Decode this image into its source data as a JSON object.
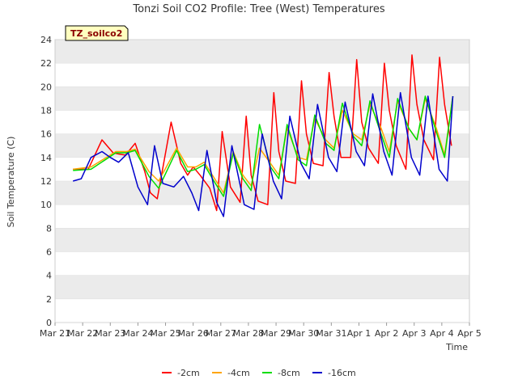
{
  "chart_data": {
    "type": "line",
    "title": "Tonzi Soil CO2 Profile: Tree (West) Temperatures",
    "xlabel": "Time",
    "ylabel": "Soil Temperature (C)",
    "tag": "TZ_soilco2",
    "ylim": [
      0,
      24
    ],
    "yticks": [
      0,
      2,
      4,
      6,
      8,
      10,
      12,
      14,
      16,
      18,
      20,
      22,
      24
    ],
    "xlim": [
      0,
      15
    ],
    "xticks": [
      {
        "v": 0,
        "label": "Mar 21"
      },
      {
        "v": 1,
        "label": "Mar 22"
      },
      {
        "v": 2,
        "label": "Mar 23"
      },
      {
        "v": 3,
        "label": "Mar 24"
      },
      {
        "v": 4,
        "label": "Mar 25"
      },
      {
        "v": 5,
        "label": "Mar 26"
      },
      {
        "v": 6,
        "label": "Mar 27"
      },
      {
        "v": 7,
        "label": "Mar 28"
      },
      {
        "v": 8,
        "label": "Mar 29"
      },
      {
        "v": 9,
        "label": "Mar 30"
      },
      {
        "v": 10,
        "label": "Mar 31"
      },
      {
        "v": 11,
        "label": "Apr 1"
      },
      {
        "v": 12,
        "label": "Apr 2"
      },
      {
        "v": 13,
        "label": "Apr 3"
      },
      {
        "v": 14,
        "label": "Apr 4"
      },
      {
        "v": 15,
        "label": "Apr 5"
      }
    ],
    "grid": "horizontal bands",
    "legend_position": "bottom",
    "series": [
      {
        "name": "-2cm",
        "color": "#ff0000",
        "x": [
          0.65,
          1.2,
          1.7,
          2.1,
          2.3,
          2.55,
          2.9,
          3.25,
          3.45,
          3.7,
          4.2,
          4.55,
          4.8,
          5.0,
          5.25,
          5.6,
          5.85,
          6.05,
          6.35,
          6.7,
          6.92,
          7.1,
          7.35,
          7.7,
          7.92,
          8.1,
          8.35,
          8.7,
          8.92,
          9.1,
          9.35,
          9.7,
          9.92,
          10.1,
          10.35,
          10.7,
          10.92,
          11.1,
          11.35,
          11.7,
          11.92,
          12.1,
          12.35,
          12.7,
          12.92,
          13.1,
          13.35,
          13.7,
          13.92,
          14.1,
          14.35
        ],
        "y": [
          13.0,
          13.0,
          15.5,
          14.4,
          14.3,
          14.2,
          15.2,
          12.8,
          11.0,
          10.5,
          17.0,
          13.5,
          12.5,
          13.2,
          12.5,
          11.4,
          9.5,
          16.2,
          11.5,
          10.2,
          17.5,
          12.5,
          10.3,
          10.0,
          19.5,
          14.5,
          12.0,
          11.8,
          20.5,
          16.0,
          13.5,
          13.3,
          21.2,
          17.5,
          14.0,
          14.0,
          22.3,
          17.0,
          14.8,
          13.5,
          22.0,
          18.0,
          15.0,
          13.0,
          22.7,
          18.5,
          15.5,
          13.8,
          22.5,
          18.5,
          15.0
        ]
      },
      {
        "name": "-4cm",
        "color": "#ffa500",
        "x": [
          0.65,
          1.3,
          2.2,
          2.6,
          2.9,
          3.4,
          3.75,
          4.4,
          4.8,
          5.1,
          5.4,
          5.75,
          6.1,
          6.45,
          6.8,
          7.1,
          7.4,
          7.8,
          8.1,
          8.4,
          8.8,
          9.1,
          9.4,
          9.8,
          10.1,
          10.4,
          10.8,
          11.1,
          11.4,
          11.8,
          12.1,
          12.4,
          12.8,
          13.1,
          13.4,
          13.8,
          14.1,
          14.4
        ],
        "y": [
          13.0,
          13.2,
          14.5,
          14.5,
          14.7,
          12.8,
          12.0,
          14.8,
          13.2,
          13.2,
          13.6,
          12.3,
          11.0,
          14.5,
          12.5,
          11.6,
          14.8,
          13.5,
          12.5,
          16.5,
          14.0,
          13.8,
          17.3,
          15.5,
          14.8,
          18.0,
          16.0,
          15.5,
          18.5,
          16.5,
          14.5,
          18.8,
          16.5,
          15.5,
          19.0,
          16.5,
          14.2,
          19.2
        ]
      },
      {
        "name": "-8cm",
        "color": "#00dd00",
        "x": [
          0.65,
          1.3,
          2.2,
          2.6,
          2.9,
          3.4,
          3.75,
          4.4,
          4.8,
          5.1,
          5.4,
          5.75,
          6.1,
          6.45,
          6.8,
          7.1,
          7.4,
          7.8,
          8.1,
          8.4,
          8.8,
          9.1,
          9.4,
          9.8,
          10.1,
          10.4,
          10.8,
          11.1,
          11.4,
          11.8,
          12.1,
          12.4,
          12.8,
          13.1,
          13.4,
          13.8,
          14.1,
          14.4
        ],
        "y": [
          12.9,
          13.0,
          14.4,
          14.4,
          14.6,
          12.4,
          11.4,
          14.6,
          12.8,
          13.0,
          13.4,
          12.0,
          10.7,
          14.4,
          12.2,
          11.2,
          16.8,
          13.2,
          12.2,
          16.8,
          13.8,
          13.3,
          17.6,
          15.2,
          14.6,
          18.6,
          15.8,
          15.0,
          18.8,
          16.0,
          14.0,
          19.0,
          16.5,
          15.5,
          19.2,
          16.2,
          14.0,
          19.2
        ]
      },
      {
        "name": "-16cm",
        "color": "#0000cc",
        "x": [
          0.65,
          0.95,
          1.3,
          1.7,
          2.0,
          2.3,
          2.65,
          3.0,
          3.35,
          3.6,
          3.9,
          4.3,
          4.65,
          4.95,
          5.2,
          5.5,
          5.85,
          6.1,
          6.4,
          6.85,
          7.2,
          7.5,
          7.9,
          8.2,
          8.5,
          8.9,
          9.2,
          9.5,
          9.9,
          10.2,
          10.5,
          10.9,
          11.2,
          11.5,
          11.9,
          12.2,
          12.5,
          12.9,
          13.2,
          13.5,
          13.9,
          14.2,
          14.4
        ],
        "y": [
          12.0,
          12.2,
          14.0,
          14.5,
          14.0,
          13.6,
          14.4,
          11.5,
          10.0,
          15.0,
          11.8,
          11.5,
          12.4,
          11.0,
          9.5,
          14.6,
          10.2,
          9.0,
          15.0,
          10.0,
          9.6,
          16.0,
          12.0,
          10.5,
          17.5,
          13.5,
          12.2,
          18.5,
          14.0,
          12.8,
          18.7,
          14.5,
          13.3,
          19.4,
          14.5,
          12.5,
          19.5,
          14.0,
          12.5,
          19.2,
          13.0,
          12.0,
          19.2
        ]
      }
    ]
  },
  "legend": {
    "items": [
      {
        "label": "-2cm",
        "color": "#ff0000"
      },
      {
        "label": "-4cm",
        "color": "#ffa500"
      },
      {
        "label": "-8cm",
        "color": "#00dd00"
      },
      {
        "label": "-16cm",
        "color": "#0000cc"
      }
    ]
  },
  "colors": {
    "band": "#ebebeb",
    "tag_fill": "#ffffc0",
    "tag_border": "#000000"
  }
}
